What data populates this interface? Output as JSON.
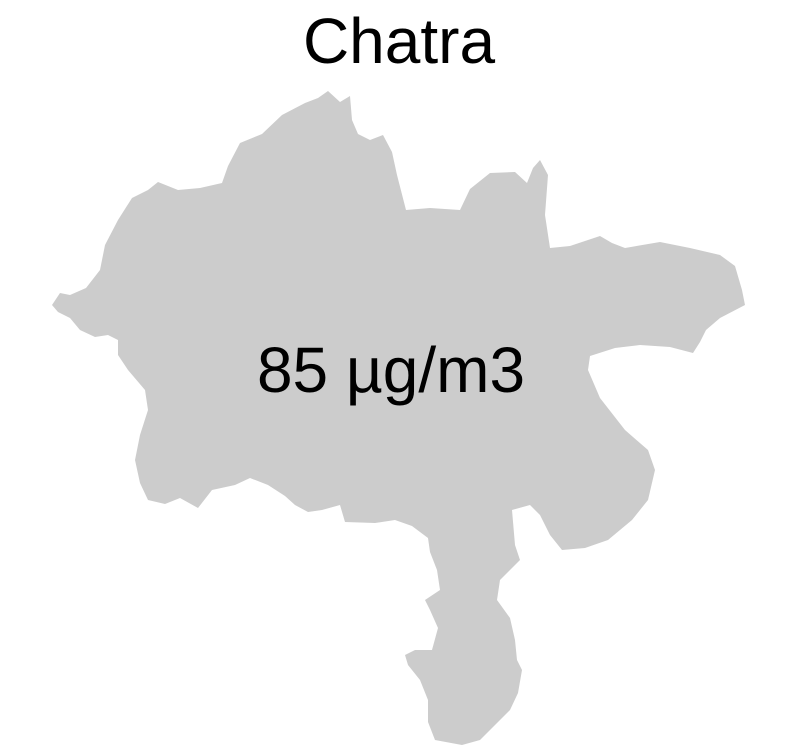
{
  "map": {
    "title": "Chatra",
    "region_value": "85 µg/m3",
    "region_fill": "#CCCCCC",
    "background": "#FFFFFF"
  }
}
